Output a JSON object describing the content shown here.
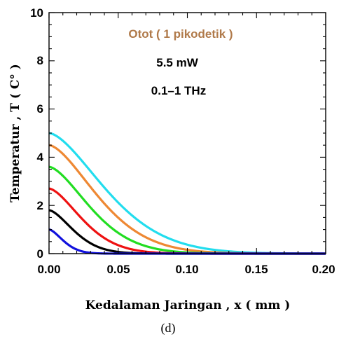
{
  "chart_data": {
    "type": "line",
    "title": "",
    "xlabel": "Kedalaman Jaringan , x ( mm )",
    "ylabel": "Temperatur , T ( C° )",
    "xlim": [
      0,
      0.2
    ],
    "ylim": [
      0,
      10
    ],
    "x_ticks": [
      "0.00",
      "0.05",
      "0.10",
      "0.15",
      "0.20"
    ],
    "y_ticks": [
      "0",
      "2",
      "4",
      "6",
      "8",
      "10"
    ],
    "grid": false,
    "annotations": [
      "Otot ( 1 pikodetik )",
      "5.5 mW",
      "0.1–1 THz"
    ],
    "series": [
      {
        "color": "#22ddee",
        "peak": 5.0,
        "decay_scale": 0.055
      },
      {
        "color": "#ee8833",
        "peak": 4.5,
        "decay_scale": 0.047
      },
      {
        "color": "#22dd22",
        "peak": 3.6,
        "decay_scale": 0.04
      },
      {
        "color": "#ee1111",
        "peak": 2.7,
        "decay_scale": 0.032
      },
      {
        "color": "#000000",
        "peak": 1.8,
        "decay_scale": 0.024
      },
      {
        "color": "#1111dd",
        "peak": 1.0,
        "decay_scale": 0.014
      }
    ]
  },
  "caption": "(d)"
}
